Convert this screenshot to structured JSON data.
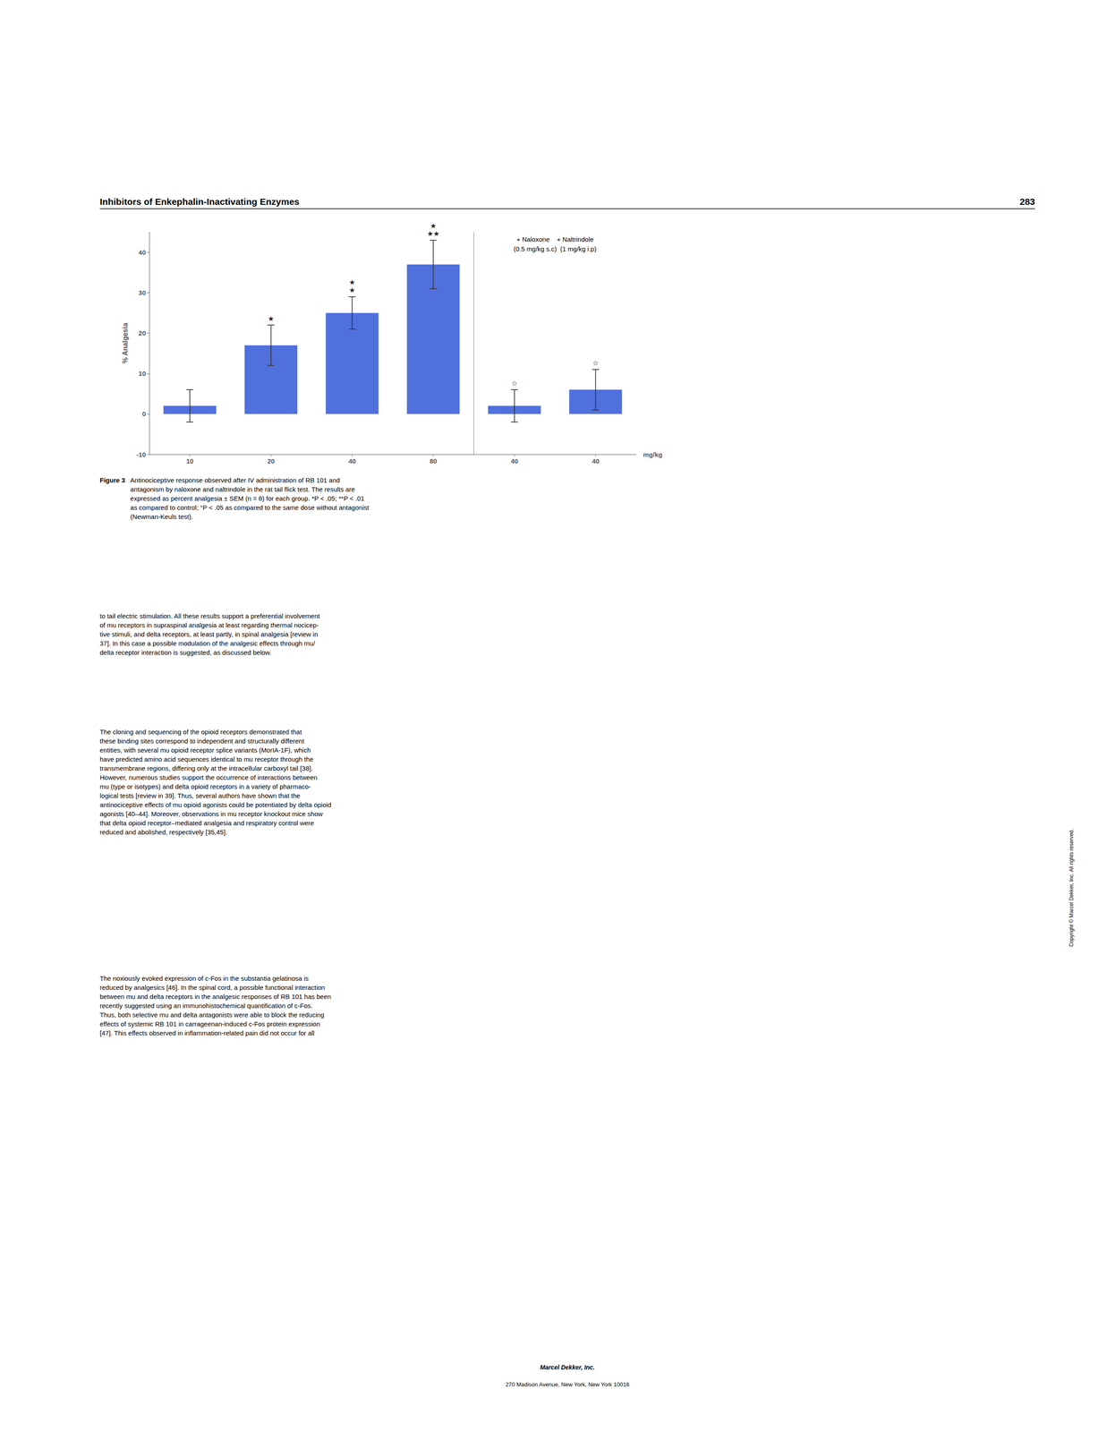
{
  "chart_data": {
    "type": "bar",
    "categories": [
      "10",
      "20",
      "40",
      "80",
      "40",
      "40"
    ],
    "values": [
      2,
      17,
      25,
      37,
      2,
      6
    ],
    "errors": [
      4,
      5,
      4,
      6,
      4,
      5
    ],
    "significance": [
      null,
      "★",
      "★\n★",
      "★\n★★",
      "☆",
      "☆"
    ],
    "ylabel": "% Analgesia",
    "xlabel": "mg/kg",
    "ylim": [
      -10,
      45
    ],
    "yticks": [
      -10,
      0,
      10,
      20,
      30,
      40
    ],
    "grid": false,
    "annotations": [
      "+ Naloxone    + Naltrindole",
      "(0.5 mg/kg s.c)  (1 mg/kg i.p)"
    ]
  },
  "header": [
    "Inhibitors of Enkephalin-Inactivating Enzymes",
    "283"
  ],
  "caption": {
    "label": "Figure 3",
    "text": "Antinociceptive response observed after IV administration of RB 101 and\nantagonism by naloxone and naltrindole in the rat tail flick test. The results are\nexpressed as percent analgesia ± SEM (n = 8) for each group. *P < .05; **P < .01\nas compared to control; °P < .05 as compared to the same dose without antagonist\n(Newman-Keuls test)."
  },
  "body": [
    "to tail electric stimulation. All these results support a preferential involvement\nof mu receptors in supraspinal analgesia at least regarding thermal nocicep-\ntive stimuli, and delta receptors, at least partly, in spinal analgesia [review in\n37]. In this case a possible modulation of the analgesic effects through mu/\ndelta receptor interaction is suggested, as discussed below.",
    "The cloning and sequencing of the opioid receptors demonstrated that\nthese binding sites correspond to independent and structurally different\nentities, with several mu opioid receptor splice variants (MorIA-1F), which\nhave predicted amino acid sequences identical to mu receptor through the\ntransmembrane regions, differing only at the intracellular carboxyl tail [38].\nHowever, numerous studies support the occurrence of interactions between\nmu (type or isotypes) and delta opioid receptors in a variety of pharmaco-\nlogical tests [review in 39]. Thus, several authors have shown that the\nantinociceptive effects of mu opioid agonists could be potentiated by delta opioid\nagonists [40–44]. Moreover, observations in mu receptor knockout mice show\nthat delta opioid receptor–mediated analgesia and respiratory control were\nreduced and abolished, respectively [35,45].",
    "The noxiously evoked expression of c-Fos in the substantia gelatinosa is\nreduced by analgesics [46]. In the spinal cord, a possible functional interaction\nbetween mu and delta receptors in the analgesic responses of RB 101 has been\nrecently suggested using an immunohistochemical quantification of c-Fos.\nThus, both selective mu and delta antagonists were able to block the reducing\neffects of systemic RB 101 in carrageenan-induced c-Fos protein expression\n[47]. This effects observed in inflammation-related pain did not occur for all"
  ],
  "footer": [
    "Marcel Dekker, Inc.",
    "270 Madison Avenue, New York, New York 10016"
  ],
  "copyright": "Copyright © Marcel Dekker, Inc. All rights reserved."
}
